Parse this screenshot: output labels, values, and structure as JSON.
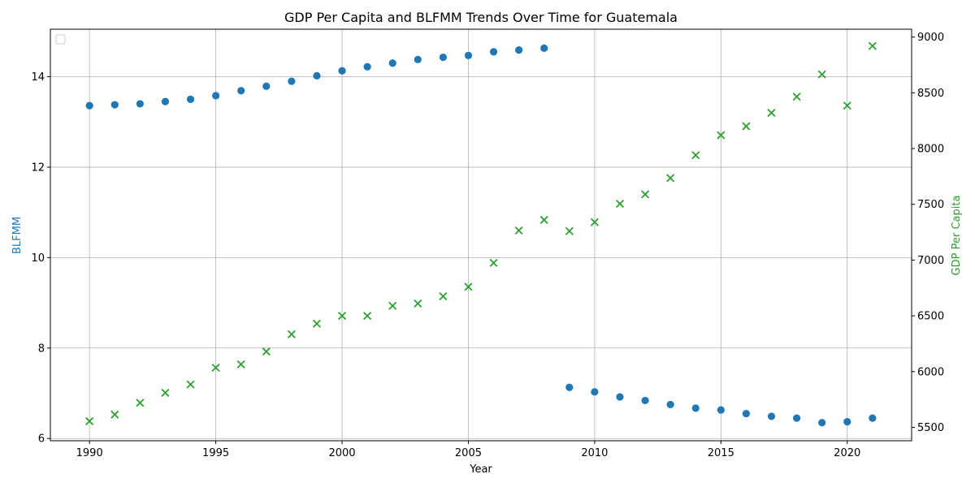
{
  "chart_data": {
    "type": "scatter",
    "title": "GDP Per Capita and BLFMM Trends Over Time for Guatemala",
    "xlabel": "Year",
    "ylabel_left": "BLFMM",
    "ylabel_right": "GDP Per Capita",
    "xlim": [
      1988.45,
      2022.55
    ],
    "ylim_left": [
      5.95,
      15.05
    ],
    "ylim_right": [
      5380,
      9070
    ],
    "x_ticks": [
      1990,
      1995,
      2000,
      2005,
      2010,
      2015,
      2020
    ],
    "y_left_ticks": [
      6,
      8,
      10,
      12,
      14
    ],
    "y_right_ticks": [
      5500,
      6000,
      6500,
      7000,
      7500,
      8000,
      8500,
      9000
    ],
    "grid": true,
    "legend": {
      "placement": "top-left",
      "entries": []
    },
    "colors": {
      "blfmm": "#1f77b4",
      "gdp": "#2ca02c"
    },
    "series": [
      {
        "axis": "left",
        "marker": "circle",
        "x": [
          1990,
          1991,
          1992,
          1993,
          1994,
          1995,
          1996,
          1997,
          1998,
          1999,
          2000,
          2001,
          2002,
          2003,
          2004,
          2005,
          2006,
          2007,
          2008,
          2009,
          2010,
          2011,
          2012,
          2013,
          2014,
          2015,
          2016,
          2017,
          2018,
          2019,
          2020,
          2021
        ],
        "values": [
          13.36,
          13.38,
          13.4,
          13.45,
          13.5,
          13.58,
          13.69,
          13.79,
          13.9,
          14.02,
          14.13,
          14.22,
          14.3,
          14.38,
          14.43,
          14.47,
          14.55,
          14.59,
          14.63,
          7.13,
          7.03,
          6.92,
          6.84,
          6.75,
          6.67,
          6.63,
          6.55,
          6.49,
          6.45,
          6.35,
          6.37,
          6.45
        ]
      },
      {
        "axis": "right",
        "marker": "x",
        "x": [
          1990,
          1991,
          1992,
          1993,
          1994,
          1995,
          1996,
          1997,
          1998,
          1999,
          2000,
          2001,
          2002,
          2003,
          2004,
          2005,
          2006,
          2007,
          2008,
          2009,
          2010,
          2011,
          2012,
          2013,
          2014,
          2015,
          2016,
          2017,
          2018,
          2019,
          2020,
          2021
        ],
        "values": [
          5555,
          5615,
          5720,
          5810,
          5885,
          6035,
          6065,
          6180,
          6335,
          6430,
          6500,
          6500,
          6590,
          6610,
          6675,
          6760,
          6975,
          7265,
          7360,
          7260,
          7340,
          7505,
          7590,
          7735,
          7940,
          8120,
          8200,
          8320,
          8465,
          8665,
          8385,
          8920
        ]
      }
    ]
  }
}
